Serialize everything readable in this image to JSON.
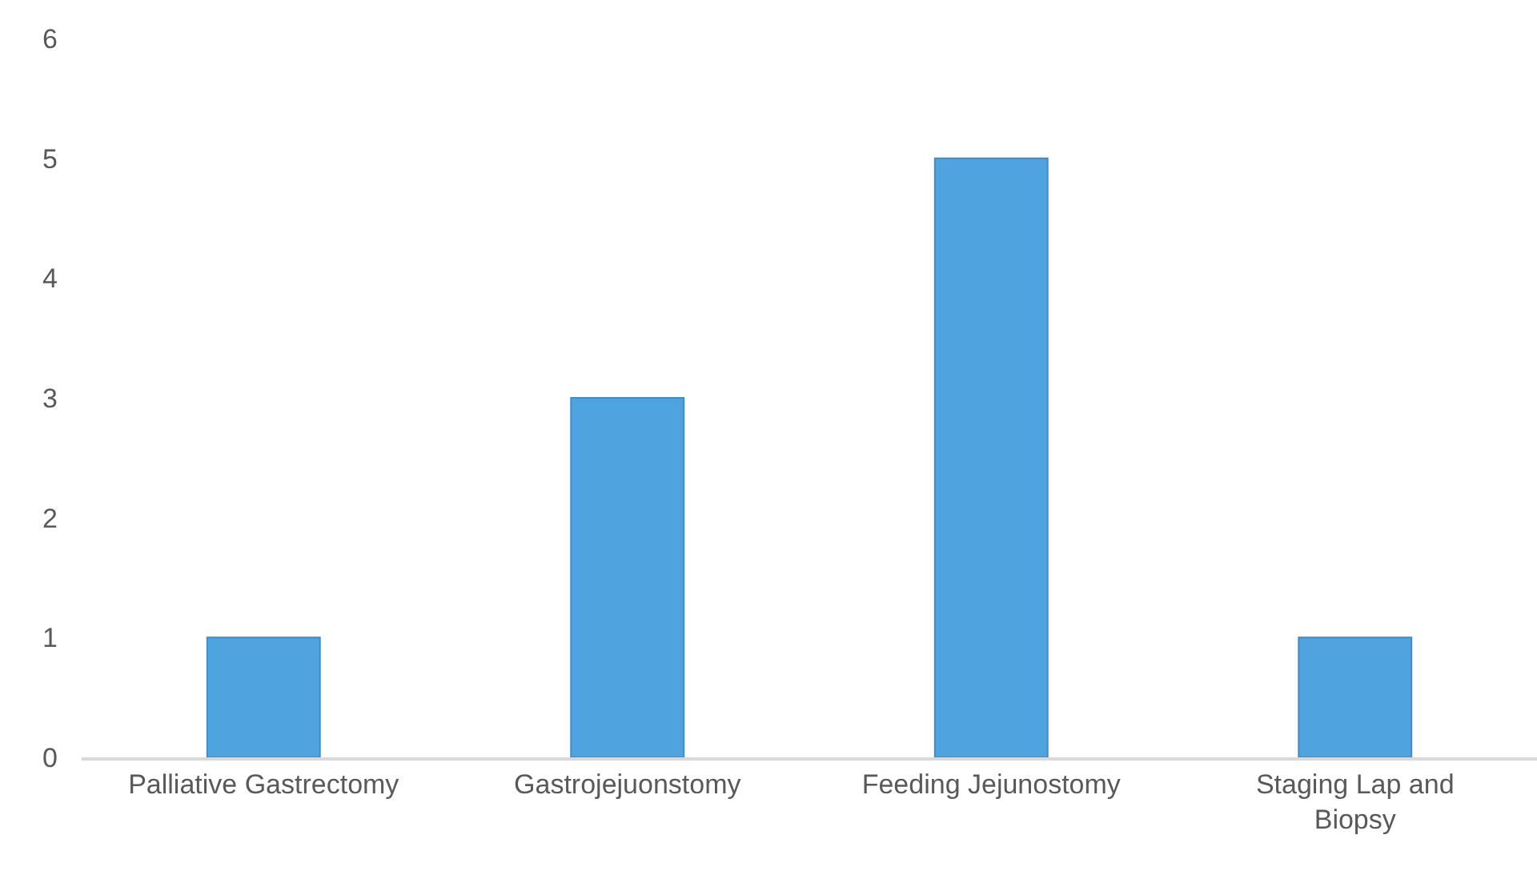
{
  "chart_data": {
    "type": "bar",
    "categories": [
      "Palliative Gastrectomy",
      "Gastrojejuonstomy",
      "Feeding Jejunostomy",
      "Staging Lap and Biopsy"
    ],
    "values": [
      1,
      3,
      5,
      1
    ],
    "color": "#4fa3df",
    "ylim": [
      0,
      6
    ],
    "yticks": [
      0,
      1,
      2,
      3,
      4,
      5,
      6
    ]
  }
}
